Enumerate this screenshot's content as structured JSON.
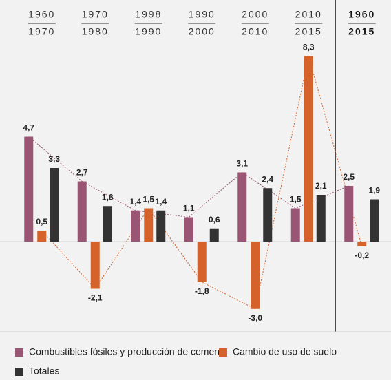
{
  "chart_data": {
    "type": "bar",
    "categories": [
      [
        "1960",
        "1970"
      ],
      [
        "1970",
        "1980"
      ],
      [
        "1998",
        "1990"
      ],
      [
        "1990",
        "2000"
      ],
      [
        "2000",
        "2010"
      ],
      [
        "2010",
        "2015"
      ],
      [
        "1960",
        "2015"
      ]
    ],
    "series": [
      {
        "name": "Combustibles fósiles y producción de cemento",
        "color": "#9b5574",
        "values": [
          4.7,
          2.7,
          1.4,
          1.1,
          3.1,
          1.5,
          2.5
        ],
        "value_labels": [
          "4,7",
          "2,7",
          "1,4",
          "1,1",
          "3,1",
          "1,5",
          "2,5"
        ]
      },
      {
        "name": "Cambio de uso de suelo",
        "color": "#d4622a",
        "values": [
          0.5,
          -2.1,
          1.5,
          -1.8,
          -3.0,
          8.3,
          -0.2
        ],
        "value_labels": [
          "0,5",
          "-2,1",
          "1,5",
          "-1,8",
          "-3,0",
          "8,3",
          "-0,2"
        ]
      },
      {
        "name": "Totales",
        "color": "#333333",
        "values": [
          3.3,
          1.6,
          1.4,
          0.6,
          2.4,
          2.1,
          1.9
        ],
        "value_labels": [
          "3,3",
          "1,6",
          "1,4",
          "0,6",
          "2,4",
          "2,1",
          "1,9"
        ]
      }
    ],
    "ylim": [
      -3.5,
      8.5
    ]
  }
}
